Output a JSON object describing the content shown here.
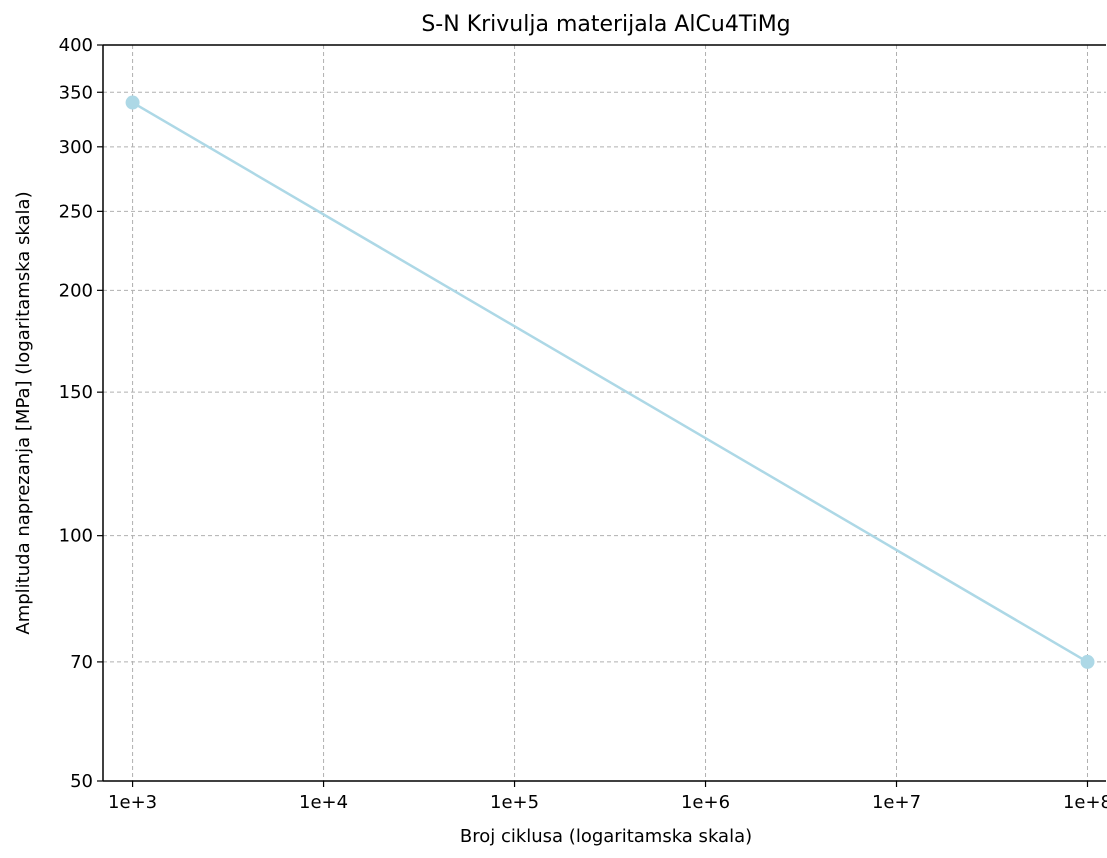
{
  "chart_data": {
    "type": "line",
    "title": "S-N Krivulja materijala AlCu4TiMg",
    "xlabel": "Broj ciklusa (logaritamska skala)",
    "ylabel": "Amplituda naprezanja [MPa] (logaritamska skala)",
    "x_scale": "log",
    "y_scale": "log",
    "xlim": [
      700,
      125000000
    ],
    "ylim": [
      50,
      400
    ],
    "x_ticks": [
      {
        "value": 1000,
        "label": "1e+3"
      },
      {
        "value": 10000,
        "label": "1e+4"
      },
      {
        "value": 100000,
        "label": "1e+5"
      },
      {
        "value": 1000000,
        "label": "1e+6"
      },
      {
        "value": 10000000,
        "label": "1e+7"
      },
      {
        "value": 100000000,
        "label": "1e+8"
      }
    ],
    "y_ticks": [
      {
        "value": 50,
        "label": "50"
      },
      {
        "value": 70,
        "label": "70"
      },
      {
        "value": 100,
        "label": "100"
      },
      {
        "value": 150,
        "label": "150"
      },
      {
        "value": 200,
        "label": "200"
      },
      {
        "value": 250,
        "label": "250"
      },
      {
        "value": 300,
        "label": "300"
      },
      {
        "value": 350,
        "label": "350"
      },
      {
        "value": 400,
        "label": "400"
      }
    ],
    "grid": true,
    "series": [
      {
        "x": [
          1000,
          100000000
        ],
        "y": [
          340,
          70
        ],
        "color": "#add8e6",
        "marker": "circle"
      }
    ]
  }
}
